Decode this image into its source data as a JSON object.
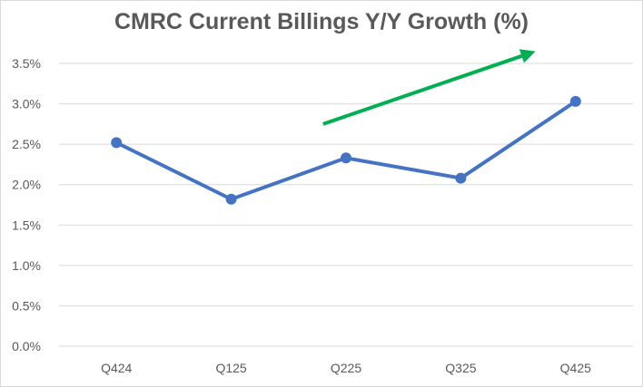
{
  "chart_data": {
    "type": "line",
    "title": "CMRC Current Billings Y/Y Growth (%)",
    "xlabel": "",
    "ylabel": "",
    "categories": [
      "Q424",
      "Q125",
      "Q225",
      "Q325",
      "Q425"
    ],
    "series": [
      {
        "values": [
          2.52,
          1.82,
          2.33,
          2.08,
          3.03
        ],
        "color": "#4472c4"
      }
    ],
    "ylim": [
      0,
      3.5
    ],
    "yticks": [
      "0.0%",
      "0.5%",
      "1.0%",
      "1.5%",
      "2.0%",
      "2.5%",
      "3.0%",
      "3.5%"
    ],
    "grid": true,
    "legend": "none",
    "annotations": [
      {
        "type": "arrow",
        "shape": "trend-up-arrow",
        "color": "#00b050",
        "from": [
          2.3,
          2.75
        ],
        "to": [
          4.15,
          3.65
        ]
      }
    ]
  }
}
